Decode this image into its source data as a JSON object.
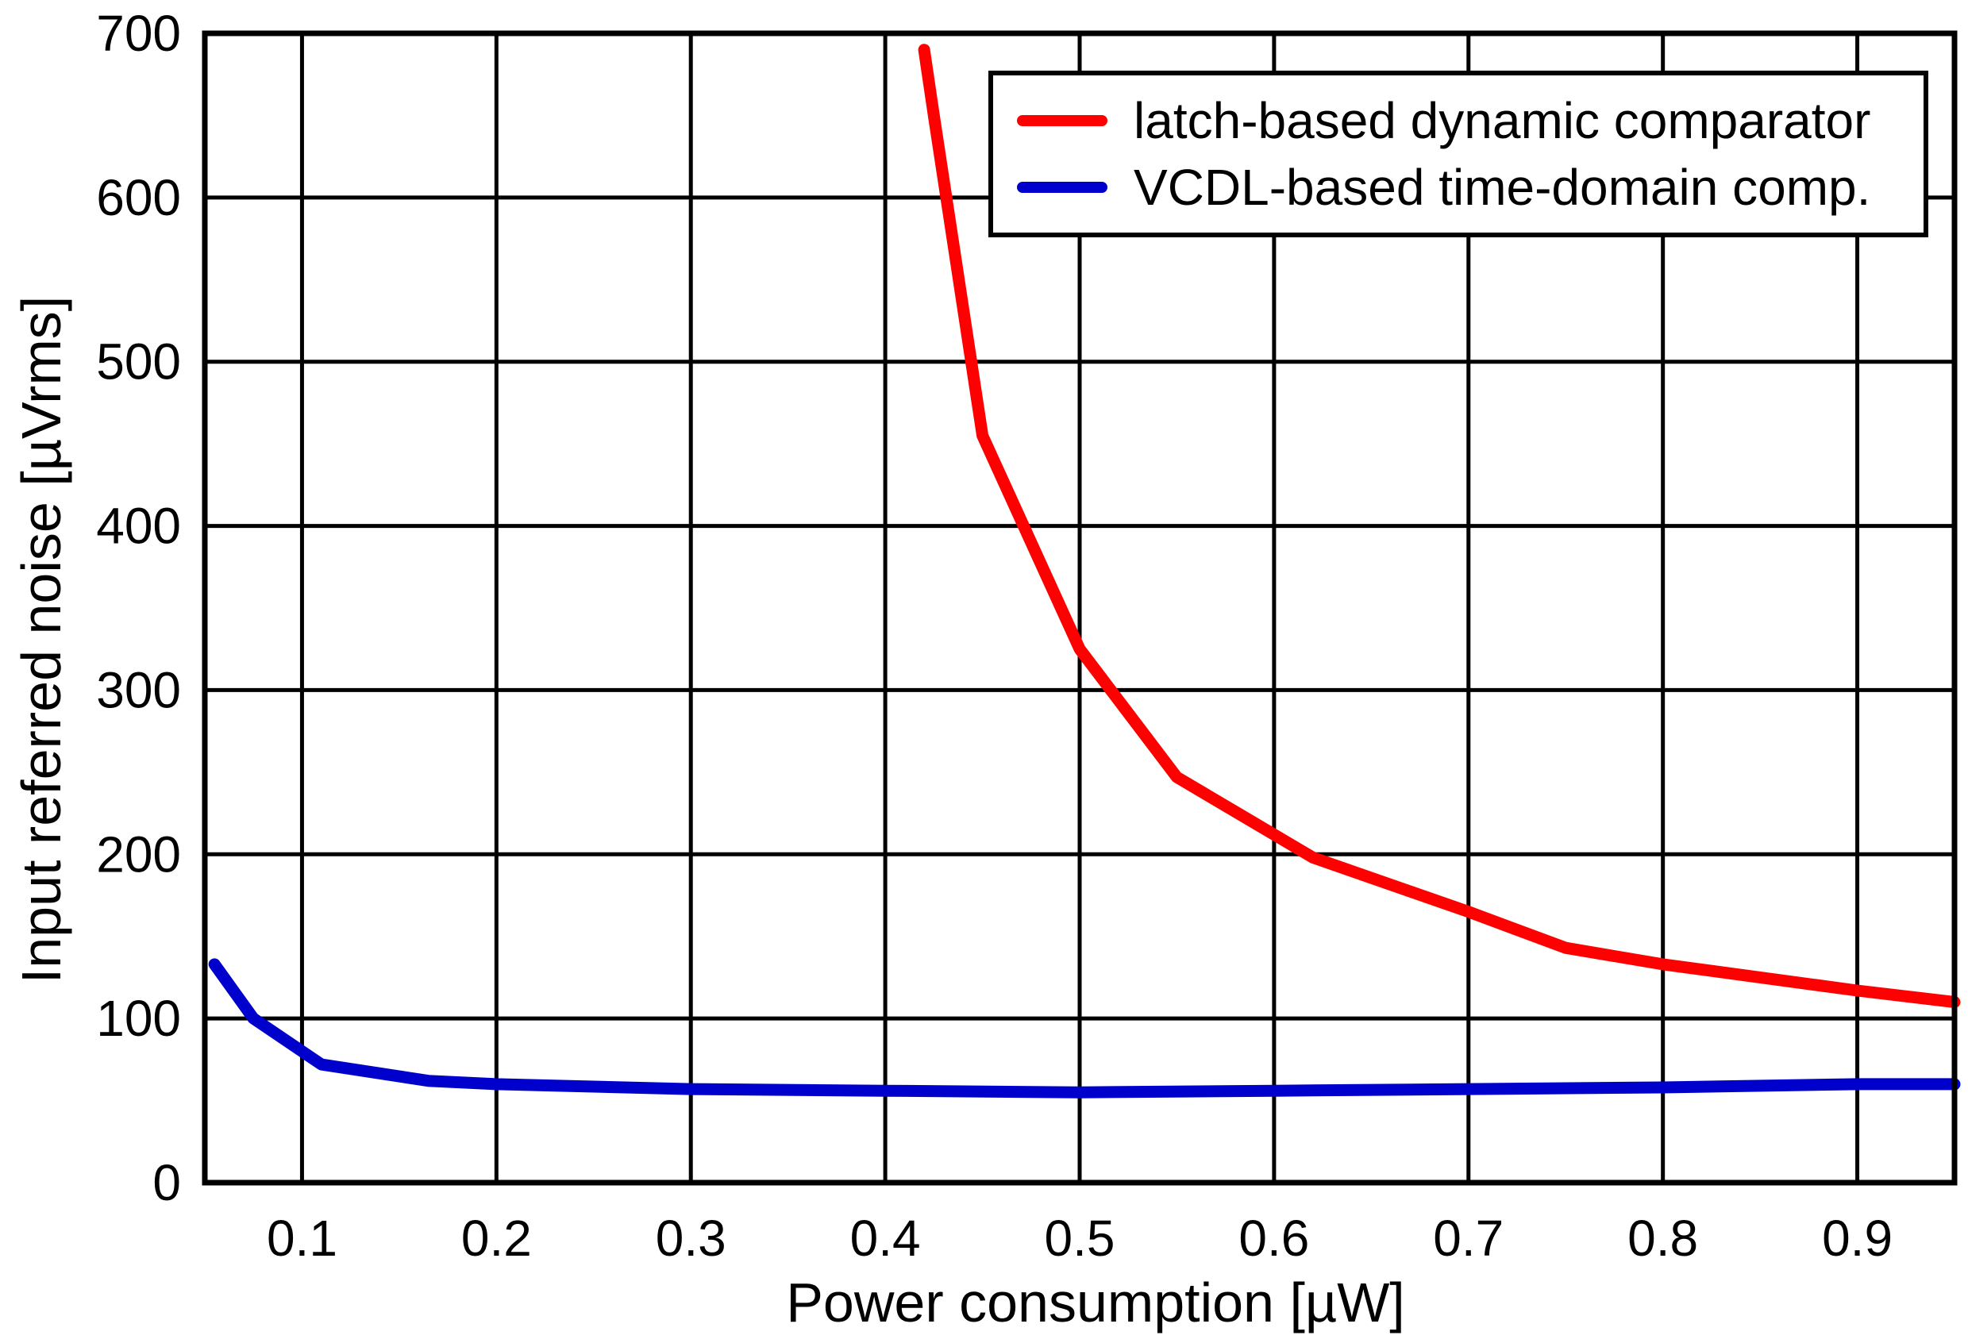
{
  "chart_data": {
    "type": "line",
    "title": "",
    "xlabel": "Power consumption [µW]",
    "ylabel": "Input referred noise [µVrms]",
    "xlim": [
      0.05,
      0.95
    ],
    "ylim": [
      0,
      700
    ],
    "xticks": [
      0.1,
      0.2,
      0.3,
      0.4,
      0.5,
      0.6,
      0.7,
      0.8,
      0.9
    ],
    "xtick_labels": [
      "0.1",
      "0.2",
      "0.3",
      "0.4",
      "0.5",
      "0.6",
      "0.7",
      "0.8",
      "0.9"
    ],
    "yticks": [
      0,
      100,
      200,
      300,
      400,
      500,
      600,
      700
    ],
    "ytick_labels": [
      "0",
      "100",
      "200",
      "300",
      "400",
      "500",
      "600",
      "700"
    ],
    "grid": true,
    "legend_position": "top-right",
    "series": [
      {
        "name": "latch-based dynamic comparator",
        "color": "#ff0000",
        "x": [
          0.42,
          0.425,
          0.45,
          0.5,
          0.55,
          0.62,
          0.7,
          0.75,
          0.8,
          0.9,
          0.95
        ],
        "y": [
          690,
          650,
          455,
          325,
          247,
          198,
          165,
          143,
          133,
          117,
          110
        ]
      },
      {
        "name": "VCDL-based time-domain comp.",
        "color": "#0000cc",
        "x": [
          0.055,
          0.075,
          0.11,
          0.165,
          0.2,
          0.3,
          0.4,
          0.5,
          0.6,
          0.7,
          0.8,
          0.9,
          0.95
        ],
        "y": [
          133,
          100,
          72,
          62,
          60,
          57,
          56,
          55,
          56,
          57,
          58,
          60,
          60
        ]
      }
    ]
  }
}
